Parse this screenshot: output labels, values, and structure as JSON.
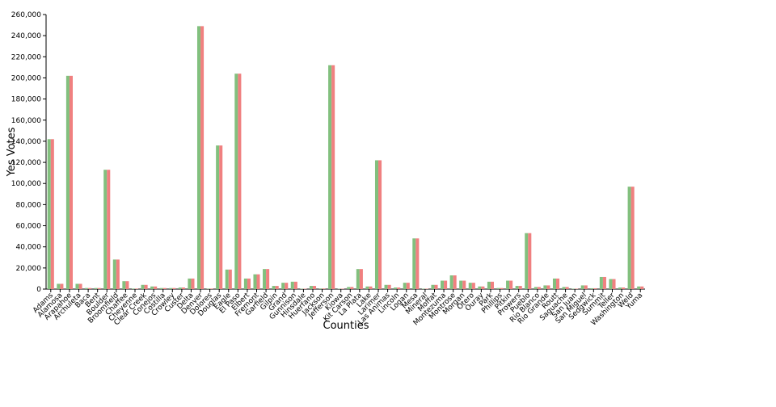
{
  "chart_data": {
    "type": "bar",
    "x_label": "Counties",
    "y_label": "Yes Votes",
    "categories": [
      "Adams",
      "Alamosa",
      "Arapahoe",
      "Archuleta",
      "Baca",
      "Bent",
      "Boulder",
      "Broomfield",
      "Chaffee",
      "Cheyenne",
      "Clear Creek",
      "Conejos",
      "Costilla",
      "Crowley",
      "Custer",
      "Delta",
      "Denver",
      "Dolores",
      "Douglas",
      "Eagle",
      "El Paso",
      "Elbert",
      "Fremont",
      "Garfield",
      "Gilpin",
      "Grand",
      "Gunnison",
      "Hinsdale",
      "Huerfano",
      "Jackson",
      "Jefferson",
      "Kiowa",
      "Kit Carson",
      "La Plata",
      "Lake",
      "Larimer",
      "Las Animas",
      "Lincoln",
      "Logan",
      "Mesa",
      "Mineral",
      "Moffat",
      "Montezuma",
      "Montrose",
      "Morgan",
      "Otero",
      "Ouray",
      "Park",
      "Phillips",
      "Pitkin",
      "Prowers",
      "Pueblo",
      "Rio Blanco",
      "Rio Grande",
      "Routt",
      "Saguache",
      "San Juan",
      "San Miguel",
      "Sedgwick",
      "Summit",
      "Teller",
      "Washington",
      "Weld",
      "Yuma"
    ],
    "series": [
      {
        "color": "#82c07e",
        "values": [
          142000,
          5000,
          202000,
          5000,
          1000,
          1000,
          113000,
          28000,
          7500,
          500,
          4000,
          2500,
          1000,
          1000,
          1500,
          10000,
          249000,
          500,
          136000,
          18500,
          204000,
          10000,
          14000,
          19000,
          3000,
          6000,
          7000,
          400,
          3000,
          600,
          212000,
          400,
          2000,
          19000,
          2500,
          122000,
          4000,
          1500,
          6000,
          48000,
          400,
          4000,
          8000,
          13000,
          8000,
          6000,
          2500,
          7000,
          1000,
          8000,
          3000,
          53000,
          2000,
          3500,
          10000,
          2000,
          400,
          3500,
          800,
          11500,
          9500,
          1500,
          97000,
          2500
        ]
      },
      {
        "color": "#f08080",
        "values": [
          142000,
          5000,
          202000,
          5000,
          1000,
          1000,
          113000,
          28000,
          7500,
          500,
          4000,
          2500,
          1000,
          1000,
          1500,
          10000,
          249000,
          500,
          136000,
          18500,
          204000,
          10000,
          14000,
          19000,
          3000,
          6000,
          7000,
          400,
          3000,
          600,
          212000,
          400,
          2000,
          19000,
          2500,
          122000,
          4000,
          1500,
          6000,
          48000,
          400,
          4000,
          8000,
          13000,
          8000,
          6000,
          2500,
          7000,
          1000,
          8000,
          3000,
          53000,
          2000,
          3500,
          10000,
          2000,
          400,
          3500,
          800,
          11500,
          9500,
          1500,
          97000,
          2500
        ]
      }
    ],
    "ylim": [
      0,
      260000
    ],
    "yticks": [
      0,
      {
        "value": 20000,
        "label": "20,000"
      },
      {
        "value": 40000,
        "label": "40,000"
      },
      {
        "value": 60000,
        "label": "60,000"
      },
      {
        "value": 80000,
        "label": "80,000"
      },
      {
        "value": 100000,
        "label": "100,000"
      },
      {
        "value": 120000,
        "label": "120,000"
      },
      {
        "value": 140000,
        "label": "140,000"
      },
      {
        "value": 160000,
        "label": "160,000"
      },
      {
        "value": 180000,
        "label": "180,000"
      },
      {
        "value": 200000,
        "label": "200,000"
      },
      {
        "value": 220000,
        "label": "220,000"
      },
      {
        "value": 240000,
        "label": "240,000"
      },
      {
        "value": 260000,
        "label": "260,000"
      }
    ]
  }
}
